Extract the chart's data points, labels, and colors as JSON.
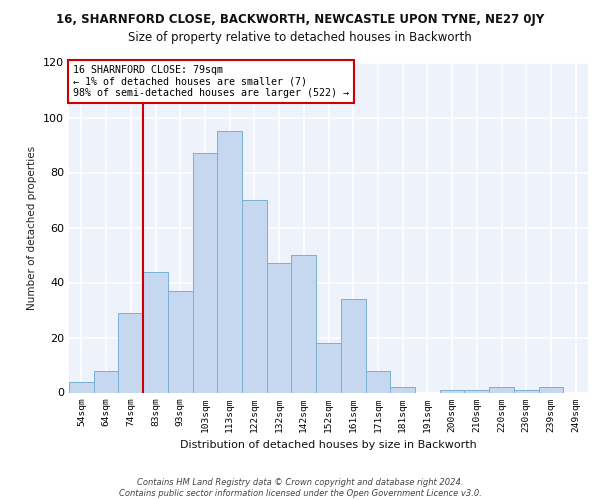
{
  "title": "16, SHARNFORD CLOSE, BACKWORTH, NEWCASTLE UPON TYNE, NE27 0JY",
  "subtitle": "Size of property relative to detached houses in Backworth",
  "xlabel": "Distribution of detached houses by size in Backworth",
  "ylabel": "Number of detached properties",
  "categories": [
    "54sqm",
    "64sqm",
    "74sqm",
    "83sqm",
    "93sqm",
    "103sqm",
    "113sqm",
    "122sqm",
    "132sqm",
    "142sqm",
    "152sqm",
    "161sqm",
    "171sqm",
    "181sqm",
    "191sqm",
    "200sqm",
    "210sqm",
    "220sqm",
    "230sqm",
    "239sqm",
    "249sqm"
  ],
  "values": [
    4,
    8,
    29,
    44,
    37,
    87,
    95,
    70,
    47,
    50,
    18,
    34,
    8,
    2,
    0,
    1,
    1,
    2,
    1,
    2,
    0
  ],
  "bar_color": "#c5d8f0",
  "bar_edge_color": "#7aafd4",
  "vline_color": "#cc0000",
  "vline_index": 2,
  "annotation_text": "16 SHARNFORD CLOSE: 79sqm\n← 1% of detached houses are smaller (7)\n98% of semi-detached houses are larger (522) →",
  "annotation_box_color": "#ffffff",
  "annotation_box_edge": "#cc0000",
  "bg_color": "#eef2fa",
  "grid_color": "#ffffff",
  "footer_text": "Contains HM Land Registry data © Crown copyright and database right 2024.\nContains public sector information licensed under the Open Government Licence v3.0.",
  "ylim": [
    0,
    120
  ],
  "yticks": [
    0,
    20,
    40,
    60,
    80,
    100,
    120
  ],
  "title_fontsize": 8.5,
  "subtitle_fontsize": 8.5
}
